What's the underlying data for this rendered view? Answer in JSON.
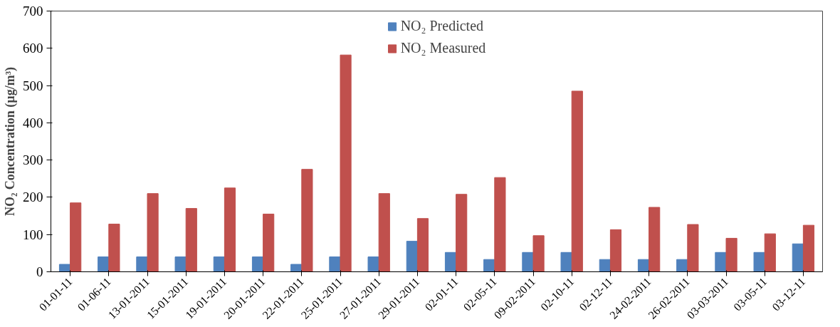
{
  "chart_data": {
    "type": "bar",
    "ylabel": "NO₂ Concentration (µg/m³)",
    "categories": [
      "01-01-11",
      "01-06-11",
      "13-01-2011",
      "15-01-2011",
      "19-01-2011",
      "20-01-2011",
      "22-01-2011",
      "25-01-2011",
      "27-01-2011",
      "29-01-2011",
      "02-01-11",
      "02-05-11",
      "09-02-2011",
      "02-10-11",
      "02-12-11",
      "24-02-2011",
      "26-02-2011",
      "03-03-2011",
      "03-05-11",
      "03-12-11"
    ],
    "series": [
      {
        "name": "NO₂ Predicted",
        "color": "#4f81bd",
        "values": [
          20,
          40,
          40,
          40,
          40,
          40,
          20,
          40,
          40,
          82,
          52,
          33,
          52,
          52,
          33,
          33,
          33,
          52,
          52,
          75
        ]
      },
      {
        "name": "NO₂ Measured",
        "color": "#c0504d",
        "values": [
          185,
          128,
          210,
          170,
          225,
          155,
          275,
          582,
          210,
          143,
          208,
          253,
          97,
          485,
          113,
          173,
          127,
          90,
          102,
          125
        ]
      }
    ],
    "ylim": [
      0,
      700
    ],
    "yticks": [
      0,
      100,
      200,
      300,
      400,
      500,
      600,
      700
    ],
    "grid": false,
    "legend": "top"
  }
}
